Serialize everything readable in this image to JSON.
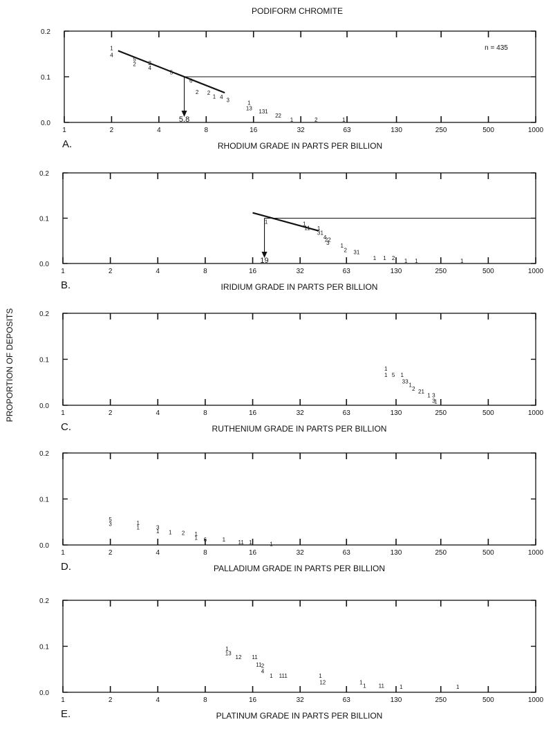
{
  "title": "PODIFORM CHROMITE",
  "ylabel": "PROPORTION OF DEPOSITS",
  "n_label": "n = 435",
  "chart_data": [
    {
      "type": "scatter",
      "letter": "A.",
      "xlabel": "RHODIUM  GRADE  IN  PARTS  PER  BILLION",
      "xscale": "log2",
      "xlim": [
        1,
        1000
      ],
      "ylim": [
        0,
        0.2
      ],
      "x_ticks": [
        "1",
        "2",
        "4",
        "8",
        "16",
        "32",
        "63",
        "130",
        "250",
        "500",
        "1000"
      ],
      "y_ticks": [
        "0.0",
        "0.1",
        "0.2"
      ],
      "trend_line": [
        [
          2.2,
          0.157
        ],
        [
          10.5,
          0.065
        ]
      ],
      "reference_line": 0.1,
      "median": {
        "x": 5.8,
        "label": "5.8"
      },
      "points": [
        {
          "x": 2.0,
          "y": 0.163,
          "label": "1"
        },
        {
          "x": 2.0,
          "y": 0.148,
          "label": "4"
        },
        {
          "x": 2.8,
          "y": 0.139,
          "label": "5"
        },
        {
          "x": 2.8,
          "y": 0.128,
          "label": "2"
        },
        {
          "x": 3.5,
          "y": 0.13,
          "label": "2"
        },
        {
          "x": 3.5,
          "y": 0.12,
          "label": "4"
        },
        {
          "x": 4.8,
          "y": 0.11,
          "label": "5"
        },
        {
          "x": 6.4,
          "y": 0.092,
          "label": "6"
        },
        {
          "x": 7.0,
          "y": 0.067,
          "label": "2"
        },
        {
          "x": 8.3,
          "y": 0.065,
          "label": "2"
        },
        {
          "x": 9.0,
          "y": 0.057,
          "label": "1"
        },
        {
          "x": 10.0,
          "y": 0.056,
          "label": "4"
        },
        {
          "x": 11.0,
          "y": 0.049,
          "label": "3"
        },
        {
          "x": 15.0,
          "y": 0.043,
          "label": "1"
        },
        {
          "x": 15.0,
          "y": 0.031,
          "label": "13"
        },
        {
          "x": 18.5,
          "y": 0.024,
          "label": "131"
        },
        {
          "x": 23.0,
          "y": 0.015,
          "label": "22"
        },
        {
          "x": 28.0,
          "y": 0.006,
          "label": "1"
        },
        {
          "x": 40.0,
          "y": 0.006,
          "label": "2"
        },
        {
          "x": 60.0,
          "y": 0.006,
          "label": "1"
        }
      ]
    },
    {
      "type": "scatter",
      "letter": "B.",
      "xlabel": "IRIDIUM  GRADE  IN PARTS PER BILLION",
      "xscale": "log2",
      "xlim": [
        1,
        1000
      ],
      "ylim": [
        0,
        0.2
      ],
      "x_ticks": [
        "1",
        "2",
        "4",
        "8",
        "16",
        "32",
        "63",
        "130",
        "250",
        "500",
        "1000"
      ],
      "y_ticks": [
        "0.0",
        "0.1",
        "0.2"
      ],
      "trend_line": [
        [
          16,
          0.112
        ],
        [
          42,
          0.072
        ]
      ],
      "reference_line": 0.1,
      "median": {
        "x": 19,
        "label": "19"
      },
      "points": [
        {
          "x": 19.5,
          "y": 0.092,
          "label": "1"
        },
        {
          "x": 34,
          "y": 0.088,
          "label": "1"
        },
        {
          "x": 35.5,
          "y": 0.079,
          "label": "11"
        },
        {
          "x": 42,
          "y": 0.078,
          "label": "1"
        },
        {
          "x": 42,
          "y": 0.068,
          "label": "3"
        },
        {
          "x": 44,
          "y": 0.068,
          "label": "1"
        },
        {
          "x": 46,
          "y": 0.058,
          "label": "4"
        },
        {
          "x": 48,
          "y": 0.053,
          "label": "22"
        },
        {
          "x": 48,
          "y": 0.046,
          "label": "3"
        },
        {
          "x": 59,
          "y": 0.04,
          "label": "1"
        },
        {
          "x": 62,
          "y": 0.03,
          "label": "2"
        },
        {
          "x": 73,
          "y": 0.025,
          "label": "31"
        },
        {
          "x": 95,
          "y": 0.012,
          "label": "1"
        },
        {
          "x": 110,
          "y": 0.012,
          "label": "1"
        },
        {
          "x": 125,
          "y": 0.012,
          "label": "2"
        },
        {
          "x": 150,
          "y": 0.006,
          "label": "1"
        },
        {
          "x": 175,
          "y": 0.006,
          "label": "1"
        },
        {
          "x": 340,
          "y": 0.006,
          "label": "1"
        }
      ]
    },
    {
      "type": "scatter",
      "letter": "C.",
      "xlabel": "RUTHENIUM  GRADE IN PARTS PER BILLION",
      "xscale": "log2",
      "xlim": [
        1,
        1000
      ],
      "ylim": [
        0,
        0.2
      ],
      "x_ticks": [
        "1",
        "2",
        "4",
        "8",
        "16",
        "32",
        "63",
        "130",
        "250",
        "500",
        "1000"
      ],
      "y_ticks": [
        "0.0",
        "0.1",
        "0.2"
      ],
      "points": [
        {
          "x": 112,
          "y": 0.08,
          "label": "1"
        },
        {
          "x": 112,
          "y": 0.066,
          "label": "1"
        },
        {
          "x": 125,
          "y": 0.066,
          "label": "5"
        },
        {
          "x": 142,
          "y": 0.066,
          "label": "1"
        },
        {
          "x": 145,
          "y": 0.052,
          "label": "3"
        },
        {
          "x": 152,
          "y": 0.052,
          "label": "3"
        },
        {
          "x": 160,
          "y": 0.044,
          "label": "1"
        },
        {
          "x": 168,
          "y": 0.036,
          "label": "2"
        },
        {
          "x": 188,
          "y": 0.03,
          "label": "21"
        },
        {
          "x": 210,
          "y": 0.022,
          "label": "1"
        },
        {
          "x": 225,
          "y": 0.022,
          "label": "3"
        },
        {
          "x": 225,
          "y": 0.01,
          "label": "3"
        },
        {
          "x": 232,
          "y": 0.008,
          "label": "1"
        }
      ]
    },
    {
      "type": "scatter",
      "letter": "D.",
      "xlabel": "PALLADIUM  GRADE IN PARTS PER BILLION",
      "xscale": "log2",
      "xlim": [
        1,
        1000
      ],
      "ylim": [
        0,
        0.2
      ],
      "x_ticks": [
        "1",
        "2",
        "4",
        "8",
        "16",
        "32",
        "63",
        "130",
        "250",
        "500",
        "1000"
      ],
      "y_ticks": [
        "0.0",
        "0.1",
        "0.2"
      ],
      "points": [
        {
          "x": 2.0,
          "y": 0.056,
          "label": "5"
        },
        {
          "x": 2.0,
          "y": 0.046,
          "label": "3"
        },
        {
          "x": 3.0,
          "y": 0.048,
          "label": "1"
        },
        {
          "x": 3.0,
          "y": 0.038,
          "label": "1"
        },
        {
          "x": 4.0,
          "y": 0.038,
          "label": "3"
        },
        {
          "x": 4.0,
          "y": 0.03,
          "label": "1"
        },
        {
          "x": 4.8,
          "y": 0.028,
          "label": "1"
        },
        {
          "x": 5.8,
          "y": 0.026,
          "label": "2"
        },
        {
          "x": 7.0,
          "y": 0.024,
          "label": "1"
        },
        {
          "x": 7.0,
          "y": 0.016,
          "label": "1"
        },
        {
          "x": 8.0,
          "y": 0.012,
          "label": "6"
        },
        {
          "x": 10.5,
          "y": 0.012,
          "label": "1"
        },
        {
          "x": 13.5,
          "y": 0.006,
          "label": "11"
        },
        {
          "x": 15.5,
          "y": 0.006,
          "label": "1"
        },
        {
          "x": 21,
          "y": 0.002,
          "label": "1"
        }
      ]
    },
    {
      "type": "scatter",
      "letter": "E.",
      "xlabel": "PLATINUM  GRADE  IN PARTS PER BILLION",
      "xscale": "log2",
      "xlim": [
        1,
        1000
      ],
      "ylim": [
        0,
        0.2
      ],
      "x_ticks": [
        "1",
        "2",
        "4",
        "8",
        "16",
        "32",
        "63",
        "130",
        "250",
        "500",
        "1000"
      ],
      "y_ticks": [
        "0.0",
        "0.1",
        "0.2"
      ],
      "points": [
        {
          "x": 11.0,
          "y": 0.095,
          "label": "1"
        },
        {
          "x": 11.2,
          "y": 0.085,
          "label": "13"
        },
        {
          "x": 13.0,
          "y": 0.077,
          "label": "12"
        },
        {
          "x": 16.5,
          "y": 0.077,
          "label": "11"
        },
        {
          "x": 17.5,
          "y": 0.06,
          "label": "11"
        },
        {
          "x": 18.5,
          "y": 0.058,
          "label": "2"
        },
        {
          "x": 18.5,
          "y": 0.046,
          "label": "4"
        },
        {
          "x": 21,
          "y": 0.036,
          "label": "1"
        },
        {
          "x": 25,
          "y": 0.036,
          "label": "111"
        },
        {
          "x": 43,
          "y": 0.036,
          "label": "1"
        },
        {
          "x": 44.5,
          "y": 0.022,
          "label": "12"
        },
        {
          "x": 78,
          "y": 0.022,
          "label": "1"
        },
        {
          "x": 82,
          "y": 0.014,
          "label": "1"
        },
        {
          "x": 105,
          "y": 0.014,
          "label": "11"
        },
        {
          "x": 140,
          "y": 0.012,
          "label": "1"
        },
        {
          "x": 320,
          "y": 0.012,
          "label": "1"
        }
      ]
    }
  ]
}
